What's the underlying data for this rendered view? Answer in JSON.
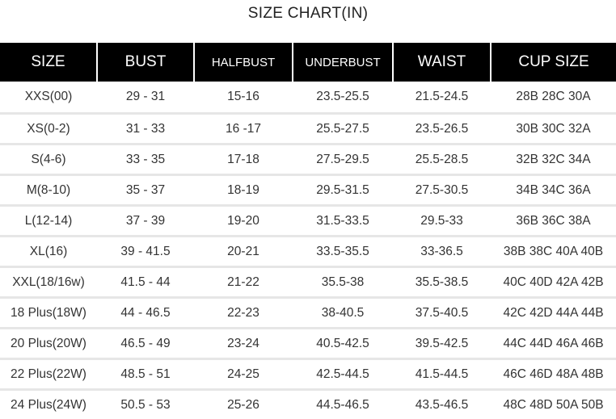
{
  "title": "SIZE CHART(IN)",
  "columns": [
    "SIZE",
    "BUST",
    "HALFBUST",
    "UNDERBUST",
    "WAIST",
    "CUP SIZE"
  ],
  "rows": [
    [
      "XXS(00)",
      "29 - 31",
      "15-16",
      "23.5-25.5",
      "21.5-24.5",
      "28B 28C 30A"
    ],
    [
      "XS(0-2)",
      "31 - 33",
      "16 -17",
      "25.5-27.5",
      "23.5-26.5",
      "30B 30C 32A"
    ],
    [
      "S(4-6)",
      "33 - 35",
      "17-18",
      "27.5-29.5",
      "25.5-28.5",
      "32B 32C 34A"
    ],
    [
      "M(8-10)",
      "35 - 37",
      "18-19",
      "29.5-31.5",
      "27.5-30.5",
      "34B 34C 36A"
    ],
    [
      "L(12-14)",
      "37 - 39",
      "19-20",
      "31.5-33.5",
      "29.5-33",
      "36B 36C 38A"
    ],
    [
      "XL(16)",
      "39 - 41.5",
      "20-21",
      "33.5-35.5",
      "33-36.5",
      "38B 38C 40A 40B"
    ],
    [
      "XXL(18/16w)",
      "41.5 - 44",
      "21-22",
      "35.5-38",
      "35.5-38.5",
      "40C 40D 42A 42B"
    ],
    [
      "18 Plus(18W)",
      "44 - 46.5",
      "22-23",
      "38-40.5",
      "37.5-40.5",
      "42C 42D  44A 44B"
    ],
    [
      "20 Plus(20W)",
      "46.5 - 49",
      "23-24",
      "40.5-42.5",
      "39.5-42.5",
      "44C 44D 46A 46B"
    ],
    [
      "22 Plus(22W)",
      "48.5 - 51",
      "24-25",
      "42.5-44.5",
      "41.5-44.5",
      "46C 46D 48A 48B"
    ],
    [
      "24 Plus(24W)",
      "50.5 - 53",
      "25-26",
      "44.5-46.5",
      "43.5-46.5",
      "48C 48D 50A 50B"
    ]
  ]
}
